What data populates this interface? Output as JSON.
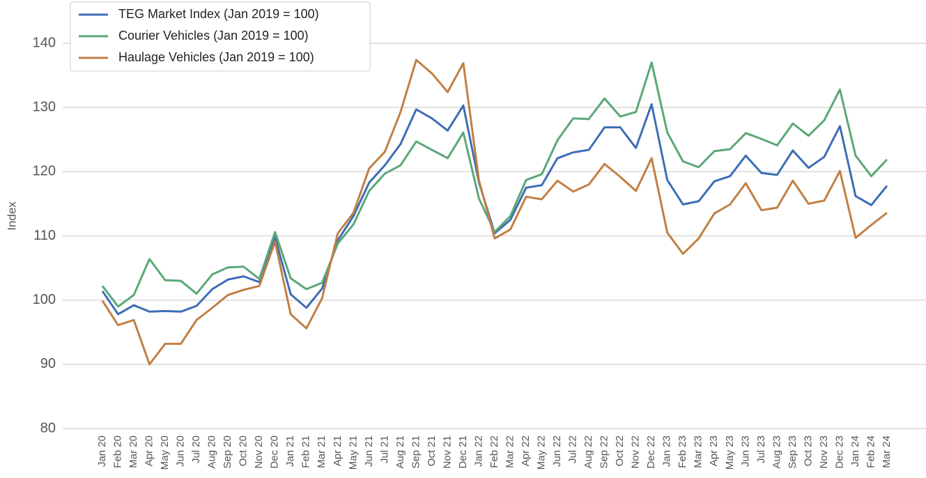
{
  "chart_data": {
    "type": "line",
    "y_label": "Index",
    "categories": [
      "Jan 20",
      "Feb 20",
      "Mar 20",
      "Apr 20",
      "May 20",
      "Jun 20",
      "Jul 20",
      "Aug 20",
      "Sep 20",
      "Oct 20",
      "Nov 20",
      "Dec 20",
      "Jan 21",
      "Feb 21",
      "Mar 21",
      "Apr 21",
      "May 21",
      "Jun 21",
      "Jul 21",
      "Aug 21",
      "Sep 21",
      "Oct 21",
      "Nov 21",
      "Dec 21",
      "Jan 22",
      "Feb 22",
      "Mar 22",
      "Apr 22",
      "May 22",
      "Jun 22",
      "Jul 22",
      "Aug 22",
      "Sep 22",
      "Oct 22",
      "Nov 22",
      "Dec 22",
      "Jan 23",
      "Feb 23",
      "Mar 23",
      "Apr 23",
      "May 23",
      "Jun 23",
      "Jul 23",
      "Aug 23",
      "Sep 23",
      "Oct 23",
      "Nov 23",
      "Dec 23",
      "Jan 24",
      "Feb 24",
      "Mar 24"
    ],
    "series": [
      {
        "name": "TEG Market Index (Jan 2019 = 100)",
        "color": "#3d6db5",
        "values": [
          101.4,
          97.8,
          99.2,
          98.2,
          98.3,
          98.2,
          99.1,
          101.7,
          103.2,
          103.7,
          102.8,
          109.8,
          100.9,
          98.8,
          101.8,
          109.3,
          113.1,
          118.3,
          121.0,
          124.3,
          129.7,
          128.3,
          126.4,
          130.3,
          118.3,
          110.4,
          112.5,
          117.5,
          117.9,
          122.1,
          123.0,
          123.4,
          126.9,
          126.9,
          123.7,
          130.5,
          118.7,
          114.9,
          115.4,
          118.5,
          119.3,
          122.5,
          119.8,
          119.5,
          123.3,
          120.6,
          122.3,
          127.1,
          116.2,
          114.8,
          117.8
        ]
      },
      {
        "name": "Courier Vehicles (Jan 2019 = 100)",
        "color": "#5aa877",
        "values": [
          102.2,
          99.0,
          100.8,
          106.4,
          103.1,
          103.0,
          101.0,
          104.0,
          105.1,
          105.2,
          103.3,
          110.6,
          103.4,
          101.7,
          102.7,
          108.8,
          111.8,
          117.0,
          119.7,
          121.0,
          124.7,
          123.4,
          122.1,
          126.1,
          115.8,
          110.6,
          113.1,
          118.7,
          119.6,
          124.9,
          128.3,
          128.2,
          131.4,
          128.6,
          129.3,
          137.0,
          126.1,
          121.6,
          120.7,
          123.2,
          123.5,
          126.0,
          125.1,
          124.1,
          127.5,
          125.6,
          128.0,
          132.8,
          122.5,
          119.3,
          121.9
        ]
      },
      {
        "name": "Haulage Vehicles (Jan 2019 = 100)",
        "color": "#c17f44",
        "values": [
          99.9,
          96.1,
          96.9,
          90.0,
          93.2,
          93.2,
          96.9,
          98.8,
          100.8,
          101.6,
          102.2,
          109.1,
          97.8,
          95.6,
          100.3,
          110.4,
          113.6,
          120.5,
          123.1,
          129.3,
          137.4,
          135.3,
          132.4,
          136.9,
          118.6,
          109.6,
          111.0,
          116.1,
          115.7,
          118.6,
          116.9,
          118.0,
          121.2,
          119.2,
          117.0,
          122.1,
          110.5,
          107.2,
          109.6,
          113.5,
          114.9,
          118.2,
          114.0,
          114.4,
          118.6,
          115.0,
          115.5,
          120.1,
          109.7,
          111.7,
          113.6
        ]
      }
    ],
    "ylim": [
      80,
      145
    ],
    "yticks": [
      80,
      90,
      100,
      110,
      120,
      130,
      140
    ],
    "grid": true,
    "legend": "upper left"
  }
}
